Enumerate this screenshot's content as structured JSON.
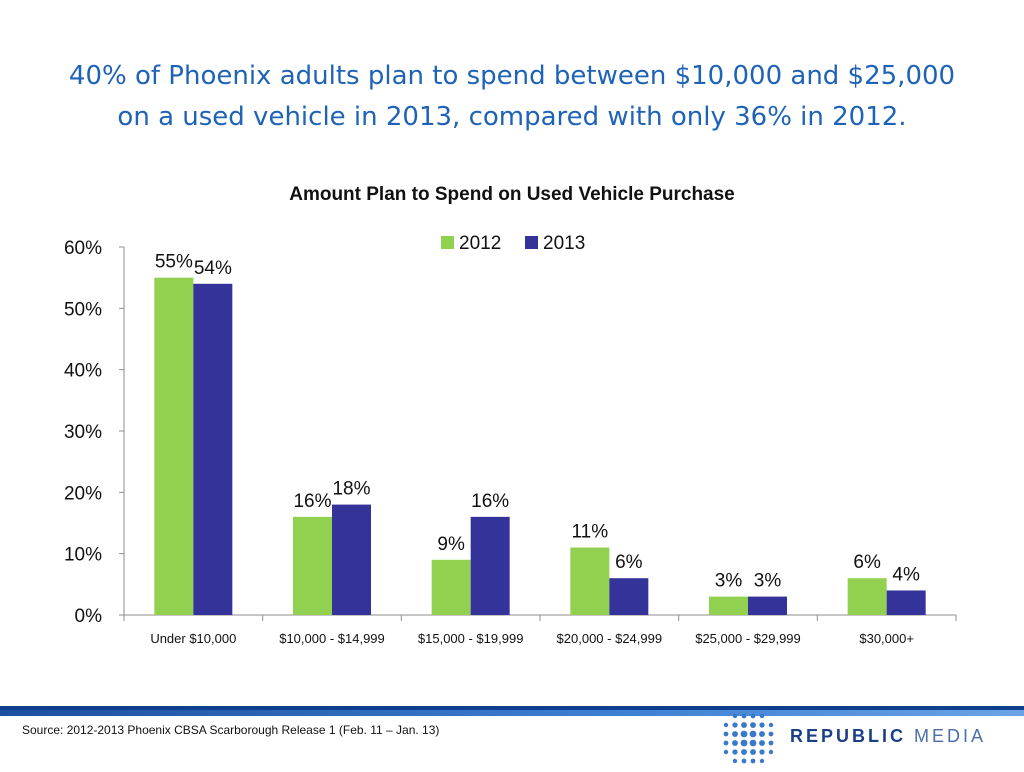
{
  "headline": {
    "line1": "40% of Phoenix adults plan to spend between $10,000 and $25,000",
    "line2": "on a used vehicle in 2013, compared with only 36% in 2012."
  },
  "footer": {
    "source": "Source:  2012-2013 Phoenix CBSA Scarborough Release 1 (Feb. 11 – Jan. 13)",
    "logo_primary": "REPUBLIC",
    "logo_secondary": "MEDIA"
  },
  "colors": {
    "headline": "#1f63b7",
    "series_2012": "#92d050",
    "series_2013": "#333399"
  },
  "chart_data": {
    "type": "bar",
    "title": "Amount Plan to Spend on Used Vehicle Purchase",
    "xlabel": "",
    "ylabel": "",
    "ylim": [
      0,
      60
    ],
    "yticks": [
      "0%",
      "10%",
      "20%",
      "30%",
      "40%",
      "50%",
      "60%"
    ],
    "grid": false,
    "legend_position": "top",
    "categories": [
      "Under $10,000",
      "$10,000 - $14,999",
      "$15,000 - $19,999",
      "$20,000 - $24,999",
      "$25,000 - $29,999",
      "$30,000+"
    ],
    "series": [
      {
        "name": "2012",
        "values": [
          55,
          16,
          9,
          11,
          3,
          6
        ],
        "labels": [
          "55%",
          "16%",
          "9%",
          "11%",
          "3%",
          "6%"
        ],
        "color": "#92d050"
      },
      {
        "name": "2013",
        "values": [
          54,
          18,
          16,
          6,
          3,
          4
        ],
        "labels": [
          "54%",
          "18%",
          "16%",
          "6%",
          "3%",
          "4%"
        ],
        "color": "#333399"
      }
    ]
  }
}
